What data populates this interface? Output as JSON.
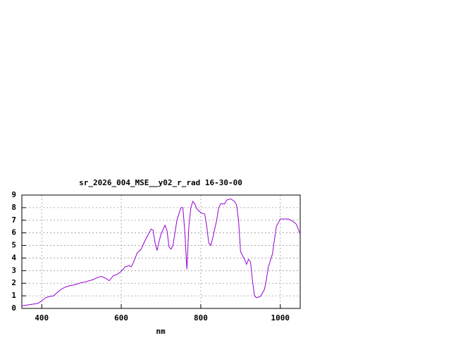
{
  "chart_data": {
    "type": "line",
    "title": "sr_2026_004_MSE__y02_r_rad 16-30-00",
    "x_label": "nm",
    "x": [
      350,
      370,
      390,
      400,
      410,
      420,
      430,
      440,
      450,
      460,
      470,
      480,
      490,
      500,
      510,
      520,
      530,
      540,
      550,
      560,
      570,
      580,
      590,
      600,
      610,
      620,
      625,
      630,
      640,
      650,
      660,
      670,
      675,
      680,
      685,
      690,
      695,
      700,
      710,
      715,
      720,
      725,
      730,
      740,
      750,
      755,
      760,
      765,
      770,
      775,
      780,
      785,
      790,
      800,
      810,
      815,
      820,
      825,
      830,
      840,
      845,
      850,
      860,
      865,
      875,
      885,
      890,
      895,
      900,
      910,
      915,
      920,
      925,
      930,
      935,
      940,
      950,
      960,
      965,
      970,
      980,
      990,
      1000,
      1010,
      1020,
      1030,
      1040,
      1050
    ],
    "series": [
      {
        "color": "#9400d3",
        "values": [
          0.2,
          0.3,
          0.4,
          0.6,
          0.85,
          0.95,
          1.0,
          1.3,
          1.55,
          1.7,
          1.8,
          1.85,
          1.95,
          2.05,
          2.1,
          2.2,
          2.3,
          2.45,
          2.55,
          2.4,
          2.2,
          2.6,
          2.7,
          2.95,
          3.3,
          3.4,
          3.3,
          3.6,
          4.4,
          4.7,
          5.4,
          6.0,
          6.3,
          6.2,
          5.2,
          4.6,
          5.3,
          5.9,
          6.6,
          6.2,
          4.9,
          4.7,
          5.0,
          7.0,
          8.0,
          8.0,
          6.0,
          3.1,
          6.5,
          8.0,
          8.5,
          8.3,
          7.9,
          7.6,
          7.5,
          6.5,
          5.2,
          5.0,
          5.6,
          7.0,
          8.0,
          8.3,
          8.3,
          8.6,
          8.7,
          8.5,
          8.2,
          7.0,
          4.5,
          3.9,
          3.5,
          3.9,
          3.7,
          2.2,
          1.0,
          0.85,
          0.95,
          1.5,
          2.3,
          3.3,
          4.3,
          6.5,
          7.1,
          7.1,
          7.1,
          6.95,
          6.7,
          5.9
        ]
      }
    ],
    "xlim": [
      350,
      1050
    ],
    "ylim": [
      0,
      9
    ],
    "xticks": [
      400,
      600,
      800,
      1000
    ],
    "yticks": [
      0,
      1,
      2,
      3,
      4,
      5,
      6,
      7,
      8,
      9
    ],
    "grid": true
  }
}
